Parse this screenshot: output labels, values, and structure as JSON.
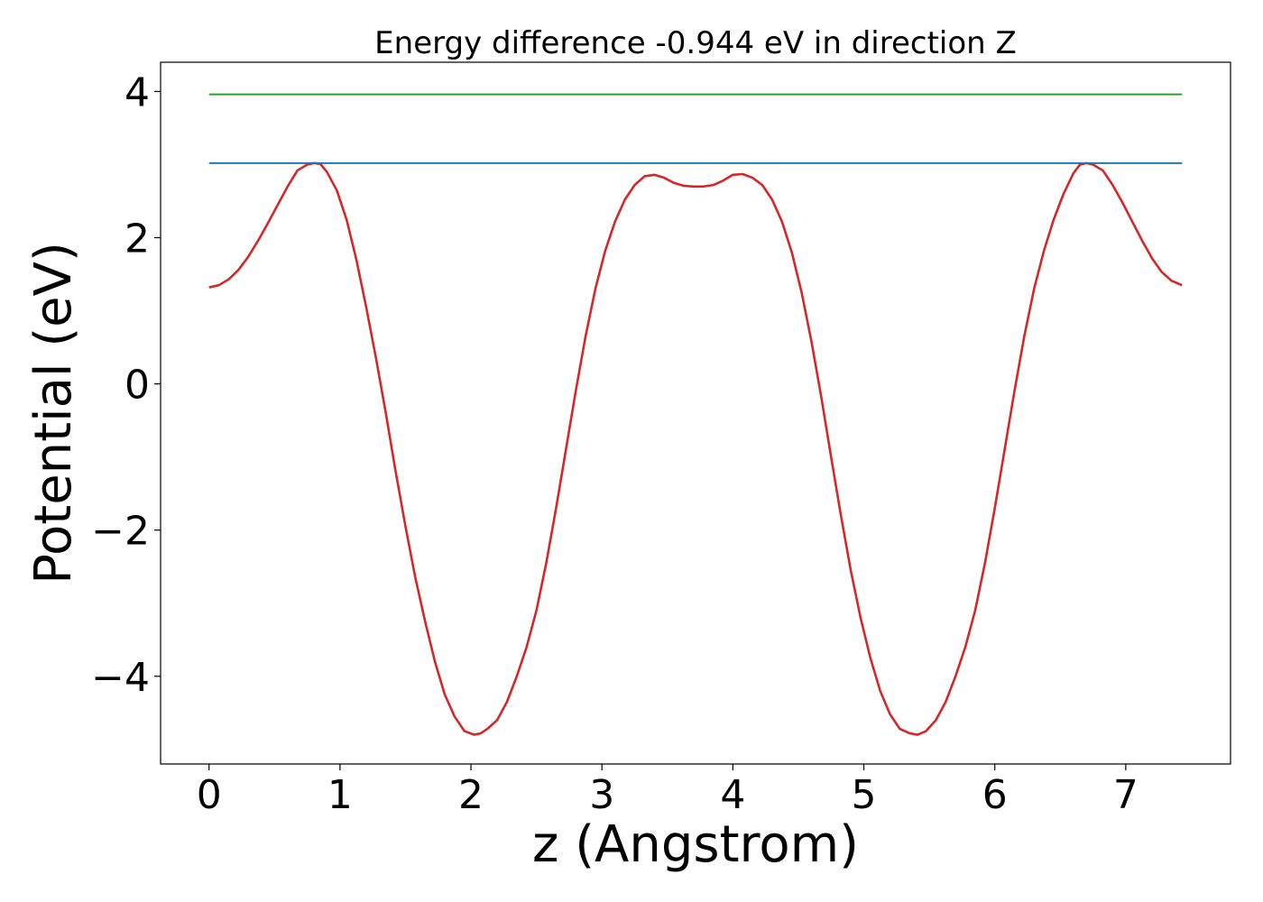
{
  "chart_data": {
    "type": "line",
    "title": "Energy difference -0.944 eV in direction Z",
    "xlabel": "z (Angstrom)",
    "ylabel": "Potential (eV)",
    "xlim": [
      -0.37,
      7.8
    ],
    "ylim": [
      -5.2,
      4.4
    ],
    "xticks": [
      0,
      1,
      2,
      3,
      4,
      5,
      6,
      7
    ],
    "xtick_labels": [
      "0",
      "1",
      "2",
      "3",
      "4",
      "5",
      "6",
      "7"
    ],
    "yticks": [
      -4,
      -2,
      0,
      2,
      4
    ],
    "ytick_labels": [
      "−4",
      "−2",
      "0",
      "2",
      "4"
    ],
    "grid": false,
    "series": [
      {
        "color": "#d62728",
        "x": [
          0.0,
          0.075,
          0.15,
          0.225,
          0.3,
          0.375,
          0.45,
          0.525,
          0.6,
          0.675,
          0.75,
          0.8,
          0.85,
          0.9,
          0.975,
          1.05,
          1.125,
          1.2,
          1.275,
          1.35,
          1.425,
          1.5,
          1.575,
          1.65,
          1.725,
          1.8,
          1.875,
          1.95,
          2.025,
          2.075,
          2.125,
          2.2,
          2.275,
          2.35,
          2.425,
          2.5,
          2.575,
          2.65,
          2.725,
          2.8,
          2.875,
          2.95,
          3.025,
          3.1,
          3.175,
          3.25,
          3.325,
          3.4,
          3.475,
          3.55,
          3.625,
          3.7,
          3.775,
          3.85,
          3.925,
          4.0,
          4.075,
          4.15,
          4.225,
          4.3,
          4.375,
          4.45,
          4.525,
          4.6,
          4.675,
          4.75,
          4.825,
          4.9,
          4.975,
          5.05,
          5.125,
          5.2,
          5.275,
          5.35,
          5.41,
          5.475,
          5.55,
          5.625,
          5.7,
          5.775,
          5.85,
          5.925,
          6.0,
          6.075,
          6.15,
          6.225,
          6.3,
          6.375,
          6.45,
          6.525,
          6.6,
          6.65,
          6.7,
          6.75,
          6.825,
          6.9,
          6.975,
          7.05,
          7.125,
          7.2,
          7.275,
          7.35,
          7.43
        ],
        "y": [
          1.32,
          1.35,
          1.43,
          1.56,
          1.74,
          1.96,
          2.2,
          2.45,
          2.7,
          2.92,
          3.0,
          3.02,
          3.01,
          2.9,
          2.65,
          2.25,
          1.7,
          1.05,
          0.35,
          -0.4,
          -1.2,
          -1.95,
          -2.65,
          -3.25,
          -3.8,
          -4.25,
          -4.55,
          -4.75,
          -4.8,
          -4.78,
          -4.72,
          -4.6,
          -4.35,
          -4.0,
          -3.6,
          -3.1,
          -2.45,
          -1.7,
          -0.9,
          -0.1,
          0.65,
          1.3,
          1.82,
          2.22,
          2.52,
          2.72,
          2.84,
          2.86,
          2.82,
          2.75,
          2.71,
          2.7,
          2.7,
          2.72,
          2.78,
          2.86,
          2.87,
          2.82,
          2.72,
          2.52,
          2.22,
          1.8,
          1.25,
          0.58,
          -0.18,
          -1.0,
          -1.8,
          -2.55,
          -3.2,
          -3.75,
          -4.2,
          -4.52,
          -4.72,
          -4.78,
          -4.8,
          -4.75,
          -4.6,
          -4.35,
          -4.0,
          -3.6,
          -3.1,
          -2.45,
          -1.7,
          -0.9,
          -0.1,
          0.65,
          1.3,
          1.82,
          2.25,
          2.6,
          2.88,
          3.0,
          3.02,
          3.0,
          2.92,
          2.72,
          2.48,
          2.22,
          1.96,
          1.72,
          1.53,
          1.41,
          1.35
        ]
      },
      {
        "color": "#1f77b4",
        "x": [
          0.0,
          7.43
        ],
        "y": [
          3.02,
          3.02
        ]
      },
      {
        "color": "#2ca02c",
        "x": [
          0.0,
          7.43
        ],
        "y": [
          3.96,
          3.96
        ]
      }
    ]
  }
}
